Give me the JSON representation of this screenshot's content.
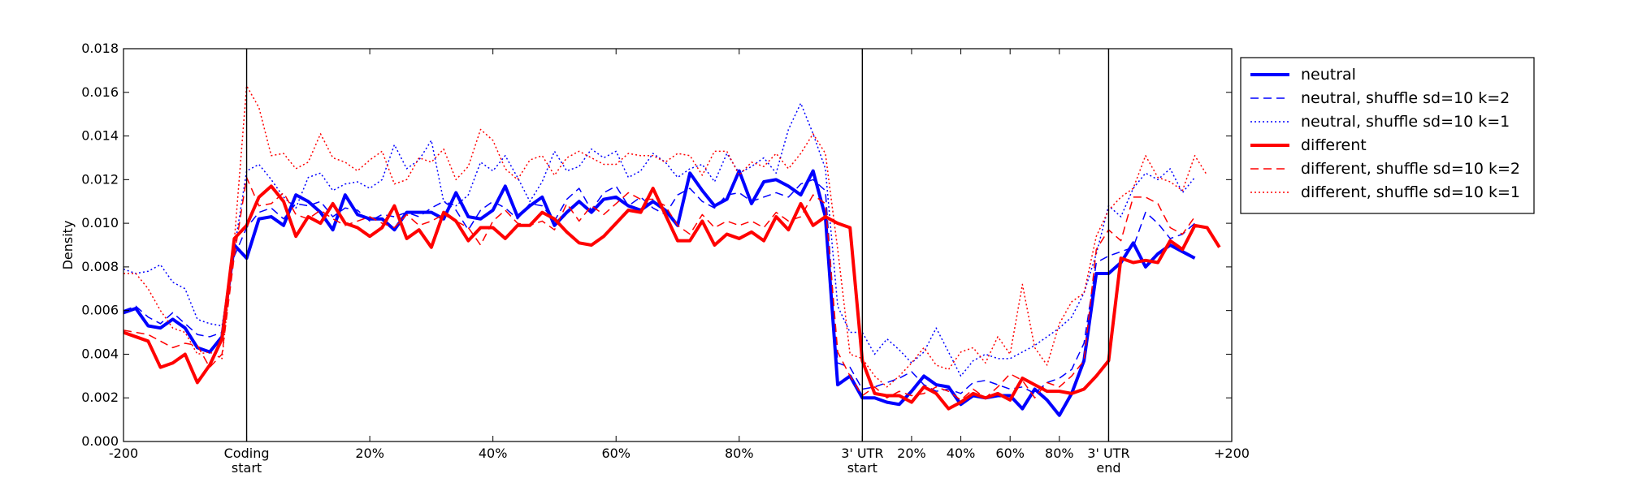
{
  "chart_data": {
    "type": "line",
    "ylabel": "Density",
    "ylim": [
      0,
      0.018
    ],
    "y_ticks": [
      "0.000",
      "0.002",
      "0.004",
      "0.006",
      "0.008",
      "0.010",
      "0.012",
      "0.014",
      "0.016",
      "0.018"
    ],
    "x_ticks": [
      {
        "label": "-200",
        "pos": 0
      },
      {
        "label": "Coding\nstart",
        "pos": 10
      },
      {
        "label": "20%",
        "pos": 20
      },
      {
        "label": "40%",
        "pos": 30
      },
      {
        "label": "60%",
        "pos": 40
      },
      {
        "label": "80%",
        "pos": 50
      },
      {
        "label": "3' UTR\nstart",
        "pos": 60
      },
      {
        "label": "20%",
        "pos": 64
      },
      {
        "label": "40%",
        "pos": 68
      },
      {
        "label": "60%",
        "pos": 72
      },
      {
        "label": "80%",
        "pos": 76
      },
      {
        "label": "3' UTR\nend",
        "pos": 80
      },
      {
        "label": "+200",
        "pos": 90
      }
    ],
    "xlim": [
      0,
      90
    ],
    "region_boundaries": [
      10,
      60,
      80
    ],
    "grid": false,
    "legend_position": "right",
    "series": [
      {
        "name": "neutral",
        "color": "#0000ff",
        "style": "solid",
        "width": 4,
        "values": [
          0.0059,
          0.0061,
          0.0053,
          0.0052,
          0.0056,
          0.0052,
          0.0043,
          0.0041,
          0.0048,
          0.009,
          0.0084,
          0.0102,
          0.0103,
          0.0099,
          0.0113,
          0.011,
          0.0105,
          0.0097,
          0.0113,
          0.0104,
          0.0102,
          0.0102,
          0.0097,
          0.0105,
          0.0105,
          0.0105,
          0.0102,
          0.0114,
          0.0103,
          0.0102,
          0.0106,
          0.0117,
          0.0103,
          0.0108,
          0.0112,
          0.0099,
          0.0105,
          0.011,
          0.0105,
          0.0111,
          0.0112,
          0.0108,
          0.0106,
          0.011,
          0.0106,
          0.0099,
          0.0123,
          0.0115,
          0.0108,
          0.0111,
          0.0124,
          0.0109,
          0.0119,
          0.012,
          0.0117,
          0.0113,
          0.0124,
          0.0103,
          0.0026,
          0.003,
          0.002,
          0.002,
          0.0018,
          0.0017,
          0.0023,
          0.003,
          0.0026,
          0.0025,
          0.0017,
          0.0021,
          0.002,
          0.0021,
          0.0021,
          0.0015,
          0.0024,
          0.0019,
          0.0012,
          0.0022,
          0.0037,
          0.0077,
          0.0077,
          0.0082,
          0.0091,
          0.008,
          0.0086,
          0.009,
          0.0087,
          0.0084
        ]
      },
      {
        "name": "neutral, shuffle sd=10 k=2",
        "color": "#0000ff",
        "style": "dashed",
        "width": 1.5,
        "values": [
          0.006,
          0.0062,
          0.0057,
          0.0054,
          0.0059,
          0.0054,
          0.0049,
          0.0048,
          0.005,
          0.0085,
          0.0098,
          0.0105,
          0.0107,
          0.0102,
          0.0109,
          0.0108,
          0.011,
          0.0103,
          0.0107,
          0.0106,
          0.0101,
          0.0104,
          0.0103,
          0.0105,
          0.0103,
          0.0107,
          0.011,
          0.0106,
          0.0097,
          0.0106,
          0.011,
          0.0107,
          0.0102,
          0.0109,
          0.0108,
          0.0101,
          0.0111,
          0.0116,
          0.0106,
          0.0114,
          0.0117,
          0.0108,
          0.0112,
          0.0107,
          0.0104,
          0.0113,
          0.0116,
          0.011,
          0.0107,
          0.0113,
          0.0114,
          0.011,
          0.0112,
          0.0114,
          0.0112,
          0.0118,
          0.012,
          0.0115,
          0.0036,
          0.0034,
          0.0024,
          0.0025,
          0.0027,
          0.0029,
          0.0032,
          0.0026,
          0.0023,
          0.0024,
          0.0022,
          0.0027,
          0.0028,
          0.0026,
          0.0024,
          0.0025,
          0.0022,
          0.0027,
          0.0029,
          0.0033,
          0.0045,
          0.0082,
          0.0085,
          0.0087,
          0.0089,
          0.0105,
          0.01,
          0.0093,
          0.0095,
          0.01
        ]
      },
      {
        "name": "neutral, shuffle sd=10 k=1",
        "color": "#0000ff",
        "style": "dotted",
        "width": 1.5,
        "values": [
          0.0079,
          0.0077,
          0.0078,
          0.0081,
          0.0073,
          0.007,
          0.0056,
          0.0054,
          0.0053,
          0.0088,
          0.0124,
          0.0127,
          0.012,
          0.0112,
          0.0107,
          0.0121,
          0.0123,
          0.0115,
          0.0118,
          0.0119,
          0.0116,
          0.012,
          0.0136,
          0.0125,
          0.0129,
          0.0138,
          0.011,
          0.0108,
          0.0113,
          0.0128,
          0.0124,
          0.0131,
          0.0121,
          0.011,
          0.0119,
          0.0133,
          0.0124,
          0.0126,
          0.0134,
          0.013,
          0.0133,
          0.0121,
          0.0124,
          0.0132,
          0.0128,
          0.0121,
          0.0125,
          0.0127,
          0.0119,
          0.0132,
          0.0123,
          0.0126,
          0.013,
          0.0123,
          0.0143,
          0.0155,
          0.0141,
          0.0125,
          0.0062,
          0.005,
          0.005,
          0.004,
          0.0047,
          0.0042,
          0.0036,
          0.0041,
          0.0052,
          0.0041,
          0.003,
          0.0037,
          0.004,
          0.0038,
          0.0038,
          0.0041,
          0.0044,
          0.0048,
          0.0052,
          0.0057,
          0.0068,
          0.0086,
          0.0108,
          0.0103,
          0.0116,
          0.0123,
          0.012,
          0.0125,
          0.0114,
          0.0121
        ]
      },
      {
        "name": "different",
        "color": "#ff0000",
        "style": "solid",
        "width": 4,
        "values": [
          0.005,
          0.0048,
          0.0046,
          0.0034,
          0.0036,
          0.004,
          0.0027,
          0.0035,
          0.0047,
          0.0093,
          0.0099,
          0.0112,
          0.0117,
          0.011,
          0.0094,
          0.0103,
          0.01,
          0.0109,
          0.01,
          0.0098,
          0.0094,
          0.0098,
          0.0108,
          0.0093,
          0.0097,
          0.0089,
          0.0105,
          0.0101,
          0.0092,
          0.0098,
          0.0098,
          0.0093,
          0.0099,
          0.0099,
          0.0105,
          0.0102,
          0.0096,
          0.0091,
          0.009,
          0.0094,
          0.01,
          0.0106,
          0.0105,
          0.0116,
          0.0104,
          0.0092,
          0.0092,
          0.0101,
          0.009,
          0.0095,
          0.0093,
          0.0096,
          0.0092,
          0.0103,
          0.0097,
          0.0109,
          0.0099,
          0.0103,
          0.01,
          0.0098,
          0.0037,
          0.0022,
          0.0021,
          0.0021,
          0.0018,
          0.0025,
          0.0022,
          0.0015,
          0.0018,
          0.0022,
          0.002,
          0.0022,
          0.0019,
          0.0029,
          0.0026,
          0.0023,
          0.0023,
          0.0022,
          0.0024,
          0.003,
          0.0037,
          0.0084,
          0.0082,
          0.0083,
          0.0082,
          0.0092,
          0.0088,
          0.0099,
          0.0098,
          0.0089
        ]
      },
      {
        "name": "different, shuffle sd=10 k=2",
        "color": "#ff0000",
        "style": "dashed",
        "width": 1.5,
        "values": [
          0.0051,
          0.005,
          0.0049,
          0.0046,
          0.0043,
          0.0045,
          0.0044,
          0.0034,
          0.004,
          0.0085,
          0.0121,
          0.0108,
          0.0109,
          0.0114,
          0.0104,
          0.0102,
          0.0106,
          0.0102,
          0.0099,
          0.0101,
          0.0103,
          0.01,
          0.0098,
          0.0104,
          0.0099,
          0.0101,
          0.0104,
          0.0101,
          0.0098,
          0.009,
          0.0101,
          0.0106,
          0.01,
          0.0099,
          0.0101,
          0.0097,
          0.0109,
          0.0101,
          0.0108,
          0.0104,
          0.0109,
          0.0114,
          0.0111,
          0.0111,
          0.0108,
          0.0099,
          0.0095,
          0.0104,
          0.0098,
          0.0101,
          0.0099,
          0.0101,
          0.0098,
          0.0105,
          0.0101,
          0.0103,
          0.0113,
          0.0109,
          0.0041,
          0.003,
          0.0021,
          0.0025,
          0.002,
          0.0023,
          0.0021,
          0.0022,
          0.0025,
          0.0023,
          0.0019,
          0.0024,
          0.002,
          0.0025,
          0.0031,
          0.0028,
          0.002,
          0.0027,
          0.0025,
          0.003,
          0.0037,
          0.0088,
          0.0097,
          0.0092,
          0.0112,
          0.0112,
          0.0109,
          0.0098,
          0.0095,
          0.0103
        ]
      },
      {
        "name": "different, shuffle sd=10 k=1",
        "color": "#ff0000",
        "style": "dotted",
        "width": 1.5,
        "values": [
          0.0077,
          0.0077,
          0.007,
          0.006,
          0.0052,
          0.005,
          0.004,
          0.0041,
          0.0038,
          0.0092,
          0.0163,
          0.0153,
          0.0131,
          0.0132,
          0.0125,
          0.0128,
          0.0141,
          0.013,
          0.0128,
          0.0124,
          0.0129,
          0.0133,
          0.0118,
          0.012,
          0.013,
          0.0128,
          0.0134,
          0.012,
          0.0126,
          0.0143,
          0.0138,
          0.0125,
          0.012,
          0.0129,
          0.0131,
          0.0122,
          0.013,
          0.0133,
          0.013,
          0.0127,
          0.0127,
          0.0132,
          0.0131,
          0.0131,
          0.0128,
          0.0132,
          0.0131,
          0.0122,
          0.0133,
          0.0133,
          0.0122,
          0.0128,
          0.0126,
          0.0132,
          0.0125,
          0.0132,
          0.0141,
          0.0132,
          0.0088,
          0.004,
          0.0038,
          0.003,
          0.0025,
          0.003,
          0.0036,
          0.0043,
          0.0035,
          0.0033,
          0.0041,
          0.0043,
          0.0036,
          0.0048,
          0.004,
          0.0072,
          0.0043,
          0.0035,
          0.0054,
          0.0064,
          0.0068,
          0.0094,
          0.0106,
          0.0112,
          0.0116,
          0.0131,
          0.0121,
          0.0119,
          0.0115,
          0.0131,
          0.0122
        ]
      }
    ]
  }
}
